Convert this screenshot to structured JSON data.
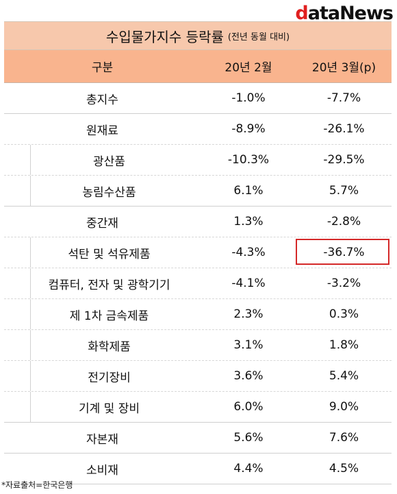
{
  "logo": {
    "first": "d",
    "rest": "ataNews"
  },
  "title": {
    "main": "수입물가지수 등락률",
    "sub": "(전년 동월 대비)"
  },
  "header": {
    "col1": "구분",
    "col2": "20년 2월",
    "col3": "20년 3월(p)"
  },
  "rows": [
    {
      "label": "총지수",
      "feb": "-1.0%",
      "mar": "-7.7%"
    },
    {
      "label": "원재료",
      "feb": "-8.9%",
      "mar": "-26.1%"
    },
    {
      "label": "광산품",
      "feb": "-10.3%",
      "mar": "-29.5%"
    },
    {
      "label": "농림수산품",
      "feb": "6.1%",
      "mar": "5.7%"
    },
    {
      "label": "중간재",
      "feb": "1.3%",
      "mar": "-2.8%"
    },
    {
      "label": "석탄 및 석유제품",
      "feb": "-4.3%",
      "mar": "-36.7%"
    },
    {
      "label": "컴퓨터, 전자 및 광학기기",
      "feb": "-4.1%",
      "mar": "-3.2%"
    },
    {
      "label": "제 1차 금속제품",
      "feb": "2.3%",
      "mar": "0.3%"
    },
    {
      "label": "화학제품",
      "feb": "3.1%",
      "mar": "1.8%"
    },
    {
      "label": "전기장비",
      "feb": "3.6%",
      "mar": "5.4%"
    },
    {
      "label": "기계 및 장비",
      "feb": "6.0%",
      "mar": "9.0%"
    },
    {
      "label": "자본재",
      "feb": "5.6%",
      "mar": "7.6%"
    },
    {
      "label": "소비재",
      "feb": "4.4%",
      "mar": "4.5%"
    }
  ],
  "footnote": "*자료출처=한국은행",
  "colors": {
    "title_bg": "#f7c8ac",
    "header_bg": "#f9b48e",
    "highlight": "#d42828",
    "logo_accent": "#e02020"
  }
}
